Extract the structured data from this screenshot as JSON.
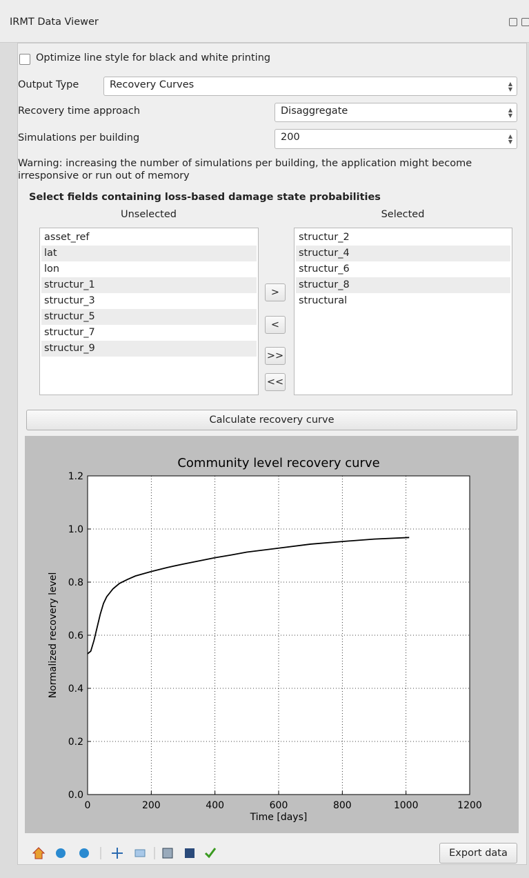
{
  "window": {
    "title": "IRMT Data Viewer"
  },
  "form": {
    "bw_checkbox": "Optimize line style for black and white printing",
    "output_type_label": "Output Type",
    "output_type_value": "Recovery Curves",
    "approach_label": "Recovery time approach",
    "approach_value": "Disaggregate",
    "simulations_label": "Simulations per building",
    "simulations_value": 200,
    "warning": "Warning: increasing the number of simulations per building, the application might become irresponsive or run out of memory"
  },
  "fields": {
    "heading": "Select fields containing loss-based damage state probabilities",
    "unselected_label": "Unselected",
    "selected_label": "Selected",
    "unselected": [
      "asset_ref",
      "lat",
      "lon",
      "structur_1",
      "structur_3",
      "structur_5",
      "structur_7",
      "structur_9"
    ],
    "selected": [
      "structur_2",
      "structur_4",
      "structur_6",
      "structur_8",
      "structural"
    ]
  },
  "buttons": {
    "add": ">",
    "remove": "<",
    "add_all": ">>",
    "remove_all": "<<",
    "calculate": "Calculate recovery curve",
    "export": "Export data"
  },
  "chart_data": {
    "type": "line",
    "title": "Community level recovery curve",
    "x_label": "Time [days]",
    "y_label": "Normalized recovery level",
    "x": [
      0,
      10,
      20,
      30,
      40,
      50,
      60,
      80,
      100,
      125,
      150,
      200,
      250,
      300,
      350,
      400,
      450,
      500,
      600,
      700,
      800,
      900,
      1010
    ],
    "values": [
      0.53,
      0.54,
      0.58,
      0.63,
      0.68,
      0.72,
      0.745,
      0.775,
      0.795,
      0.81,
      0.823,
      0.84,
      0.855,
      0.868,
      0.88,
      0.892,
      0.902,
      0.913,
      0.928,
      0.943,
      0.953,
      0.962,
      0.968
    ],
    "color": "#000000",
    "xlim": [
      0,
      1200
    ],
    "xticks": [
      0,
      200,
      400,
      600,
      800,
      1000,
      1200
    ],
    "ylim": [
      0,
      1.2
    ],
    "yticks": [
      {
        "value": 0,
        "label": "0.0"
      },
      0.2,
      0.4,
      0.6,
      0.8,
      {
        "value": 1,
        "label": "1.0"
      },
      1.2
    ],
    "grid": true
  }
}
